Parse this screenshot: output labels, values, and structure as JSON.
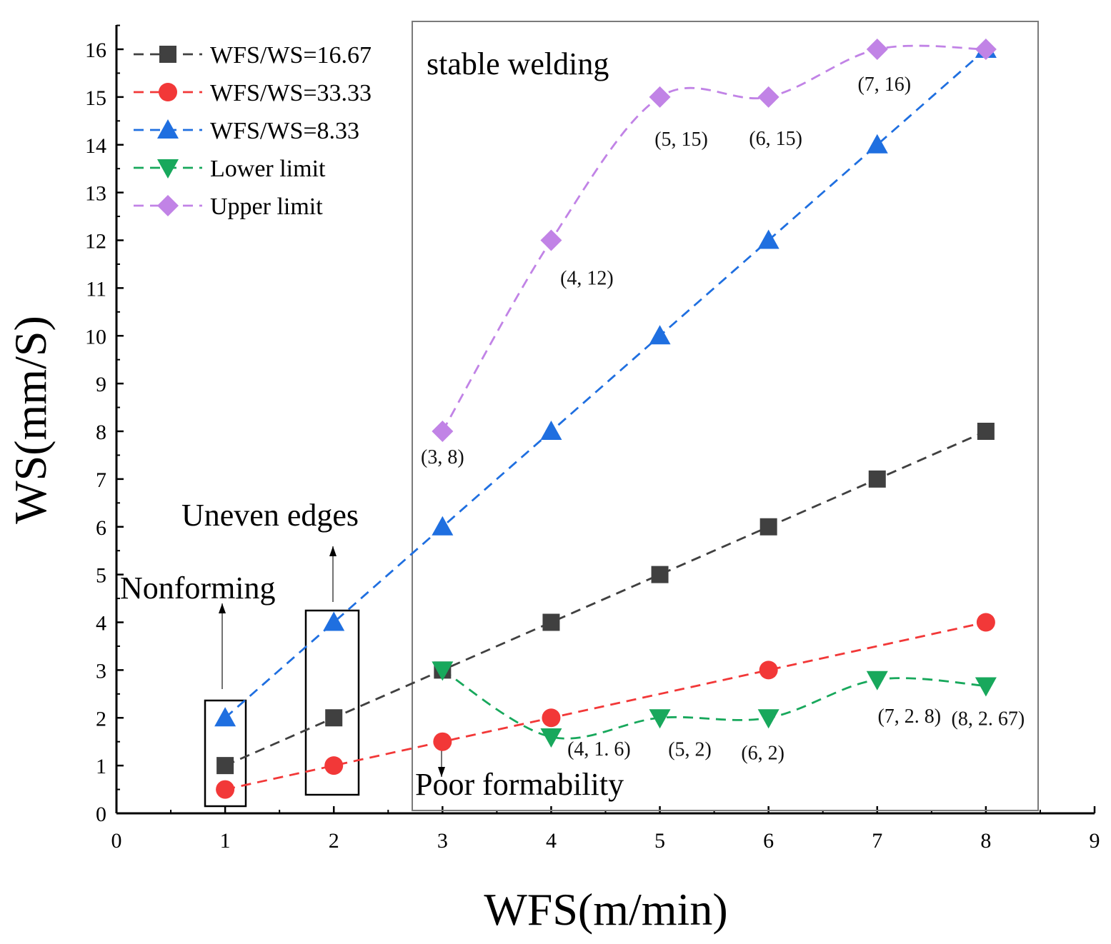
{
  "chart_data": {
    "type": "scatter",
    "title": "",
    "xlabel": "WFS(m/min)",
    "ylabel": "WS(mm/S)",
    "xlim": [
      0,
      9
    ],
    "ylim": [
      0,
      16.5
    ],
    "x_ticks": [
      "0",
      "1",
      "2",
      "3",
      "4",
      "5",
      "6",
      "7",
      "8",
      "9"
    ],
    "y_ticks": [
      "0",
      "1",
      "2",
      "3",
      "4",
      "5",
      "6",
      "7",
      "8",
      "9",
      "10",
      "11",
      "12",
      "13",
      "14",
      "15",
      "16"
    ],
    "grid": false,
    "legend_position": "top-left",
    "series": [
      {
        "name": "WFS/WS=16.67",
        "marker": "square",
        "color": "#404040",
        "line": "dashed-straight",
        "x": [
          1,
          2,
          3,
          4,
          5,
          6,
          7,
          8
        ],
        "y": [
          1,
          2,
          3,
          4,
          5,
          6,
          7,
          8
        ]
      },
      {
        "name": "WFS/WS=33.33",
        "marker": "circle",
        "color": "#f23838",
        "line": "dashed-straight",
        "x": [
          1,
          2,
          3,
          4,
          5,
          6,
          7,
          8
        ],
        "y": [
          0.5,
          1,
          1.5,
          2,
          2.5,
          3,
          3.5,
          4
        ],
        "hidden_marker_x": [
          5,
          7
        ]
      },
      {
        "name": "WFS/WS=8.33",
        "marker": "triangle-up",
        "color": "#1f6fe0",
        "line": "dashed-straight",
        "x": [
          1,
          2,
          3,
          4,
          5,
          6,
          7,
          8
        ],
        "y": [
          2,
          4,
          6,
          8,
          10,
          12,
          14,
          16
        ]
      },
      {
        "name": "Lower limit",
        "marker": "triangle-down",
        "color": "#18a85c",
        "line": "dashed-smooth",
        "x": [
          3,
          4,
          5,
          6,
          7,
          8
        ],
        "y": [
          3,
          1.6,
          2,
          2,
          2.8,
          2.67
        ]
      },
      {
        "name": "Upper limit",
        "marker": "diamond",
        "color": "#c183e6",
        "line": "dashed-smooth",
        "x": [
          3,
          4,
          5,
          6,
          7,
          8
        ],
        "y": [
          8,
          12,
          15,
          15,
          16,
          16
        ]
      }
    ],
    "point_labels": [
      {
        "text": "(3, 8)",
        "x": 3,
        "y": 8
      },
      {
        "text": "(4, 12)",
        "x": 4,
        "y": 12
      },
      {
        "text": "(5, 15)",
        "x": 5,
        "y": 15
      },
      {
        "text": "(6, 15)",
        "x": 6,
        "y": 15
      },
      {
        "text": "(7, 16)",
        "x": 7,
        "y": 16
      },
      {
        "text": "(4, 1. 6)",
        "x": 4,
        "y": 1.6
      },
      {
        "text": "(5, 2)",
        "x": 5,
        "y": 2
      },
      {
        "text": "(6, 2)",
        "x": 6,
        "y": 2
      },
      {
        "text": "(7, 2. 8)",
        "x": 7,
        "y": 2.8
      },
      {
        "text": "(8, 2. 67)",
        "x": 8,
        "y": 2.67
      }
    ],
    "annotations": {
      "stable_region": "stable welding",
      "uneven": "Uneven edges",
      "nonforming": "Nonforming",
      "poor": "Poor formability"
    }
  }
}
